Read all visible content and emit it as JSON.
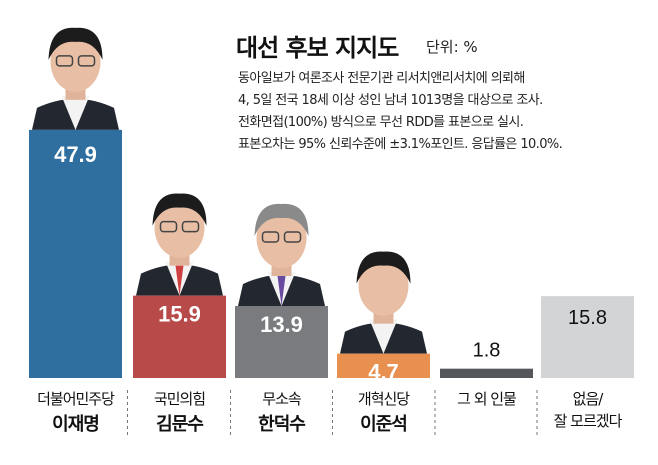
{
  "chart_data": {
    "type": "bar",
    "title": "대선 후보 지지도",
    "unit": "단위: %",
    "notes": [
      "동아일보가 여론조사 전문기관 리서치앤리서치에 의뢰해",
      "4, 5일 전국 18세 이상 성인 남녀 1013명을 대상으로 조사.",
      "전화면접(100%) 방식으로 무선 RDD를 표본으로 실시.",
      "표본오차는 95% 신뢰수준에 ±3.1%포인트. 응답률은 10.0%."
    ],
    "categories": [
      {
        "party": "더불어민주당",
        "name": "이재명"
      },
      {
        "party": "국민의힘",
        "name": "김문수"
      },
      {
        "party": "무소속",
        "name": "한덕수"
      },
      {
        "party": "개혁신당",
        "name": "이준석"
      },
      {
        "party": "그 외 인물",
        "name": ""
      },
      {
        "party": "없음/",
        "name": "잘 모르겠다"
      }
    ],
    "values": [
      47.9,
      15.9,
      13.9,
      4.7,
      1.8,
      15.8
    ],
    "value_labels": [
      "47.9",
      "15.9",
      "13.9",
      "4.7",
      "1.8",
      "15.8"
    ],
    "colors": [
      "#2f6f9f",
      "#b84a4a",
      "#7a7b7e",
      "#e8904f",
      "#555659",
      "#d3d4d6"
    ],
    "has_photo": [
      true,
      true,
      true,
      true,
      false,
      false
    ],
    "ylim": [
      0,
      50
    ],
    "grid": false
  }
}
